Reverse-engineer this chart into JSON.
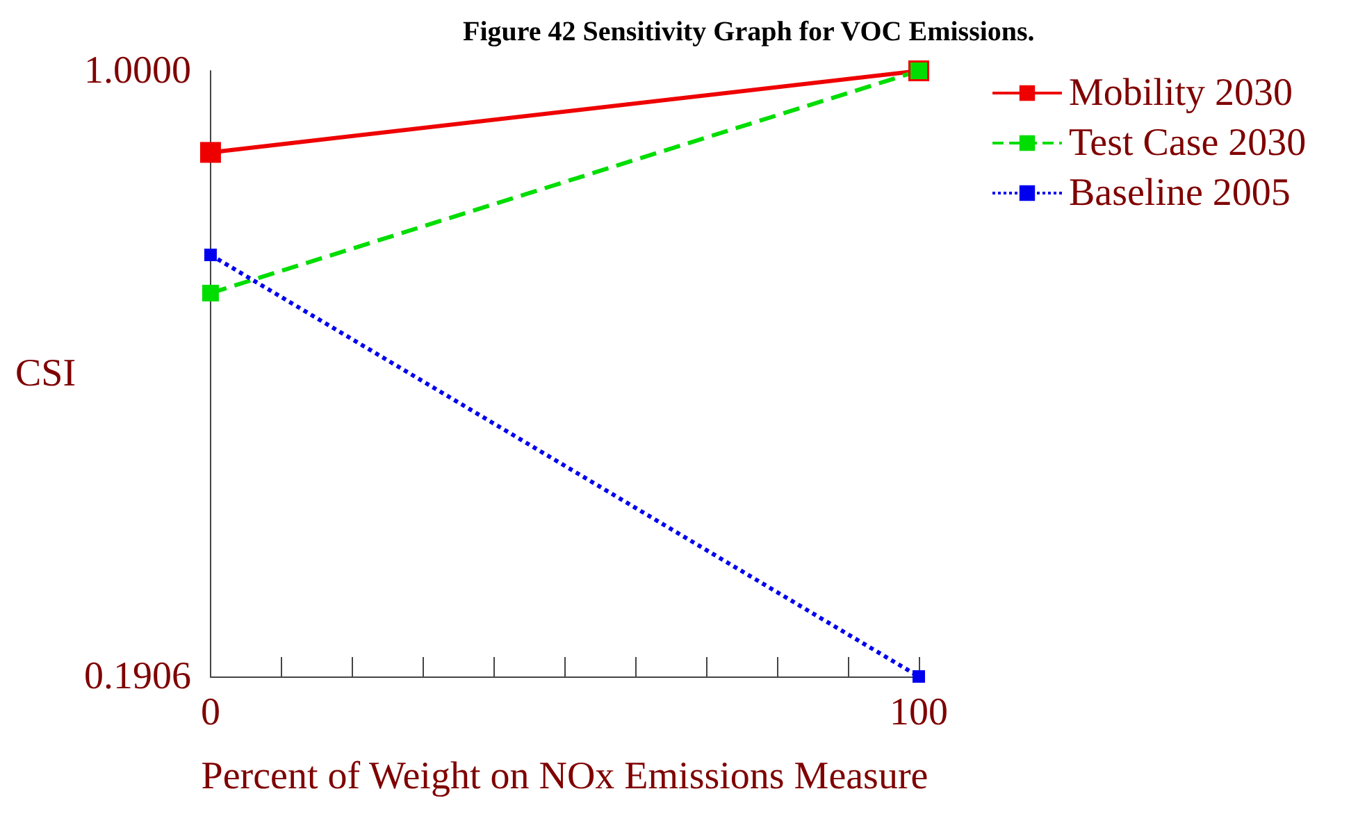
{
  "chart_data": {
    "type": "line",
    "title": "Figure 42 Sensitivity Graph for VOC Emissions.",
    "xlabel": "Percent of Weight on NOx Emissions Measure",
    "ylabel": "CSI",
    "x": [
      0,
      100
    ],
    "series": [
      {
        "name": "Mobility 2030",
        "color": "#ee0000",
        "values": [
          0.891,
          1.0
        ],
        "line_style": "solid"
      },
      {
        "name": "Test Case 2030",
        "color": "#00dd00",
        "values": [
          0.703,
          1.0
        ],
        "line_style": "dashed"
      },
      {
        "name": "Baseline 2005",
        "color": "#0000ee",
        "values": [
          0.754,
          0.1906
        ],
        "line_style": "dotted"
      }
    ],
    "xlim": [
      0,
      100
    ],
    "xticks": [
      0,
      {
        "value": 10,
        "label": null
      },
      {
        "value": 20,
        "label": null
      },
      {
        "value": 30,
        "label": null
      },
      {
        "value": 40,
        "label": null
      },
      {
        "value": 50,
        "label": null
      },
      {
        "value": 60,
        "label": null
      },
      {
        "value": 70,
        "label": null
      },
      {
        "value": 80,
        "label": null
      },
      {
        "value": 90,
        "label": null
      },
      100
    ],
    "ylim": [
      0.1906,
      1.0
    ],
    "yticks": [
      0.1906,
      {
        "value": 1.0,
        "label": "1.0000"
      }
    ],
    "grid": false,
    "legend": "right",
    "marker": "square"
  }
}
